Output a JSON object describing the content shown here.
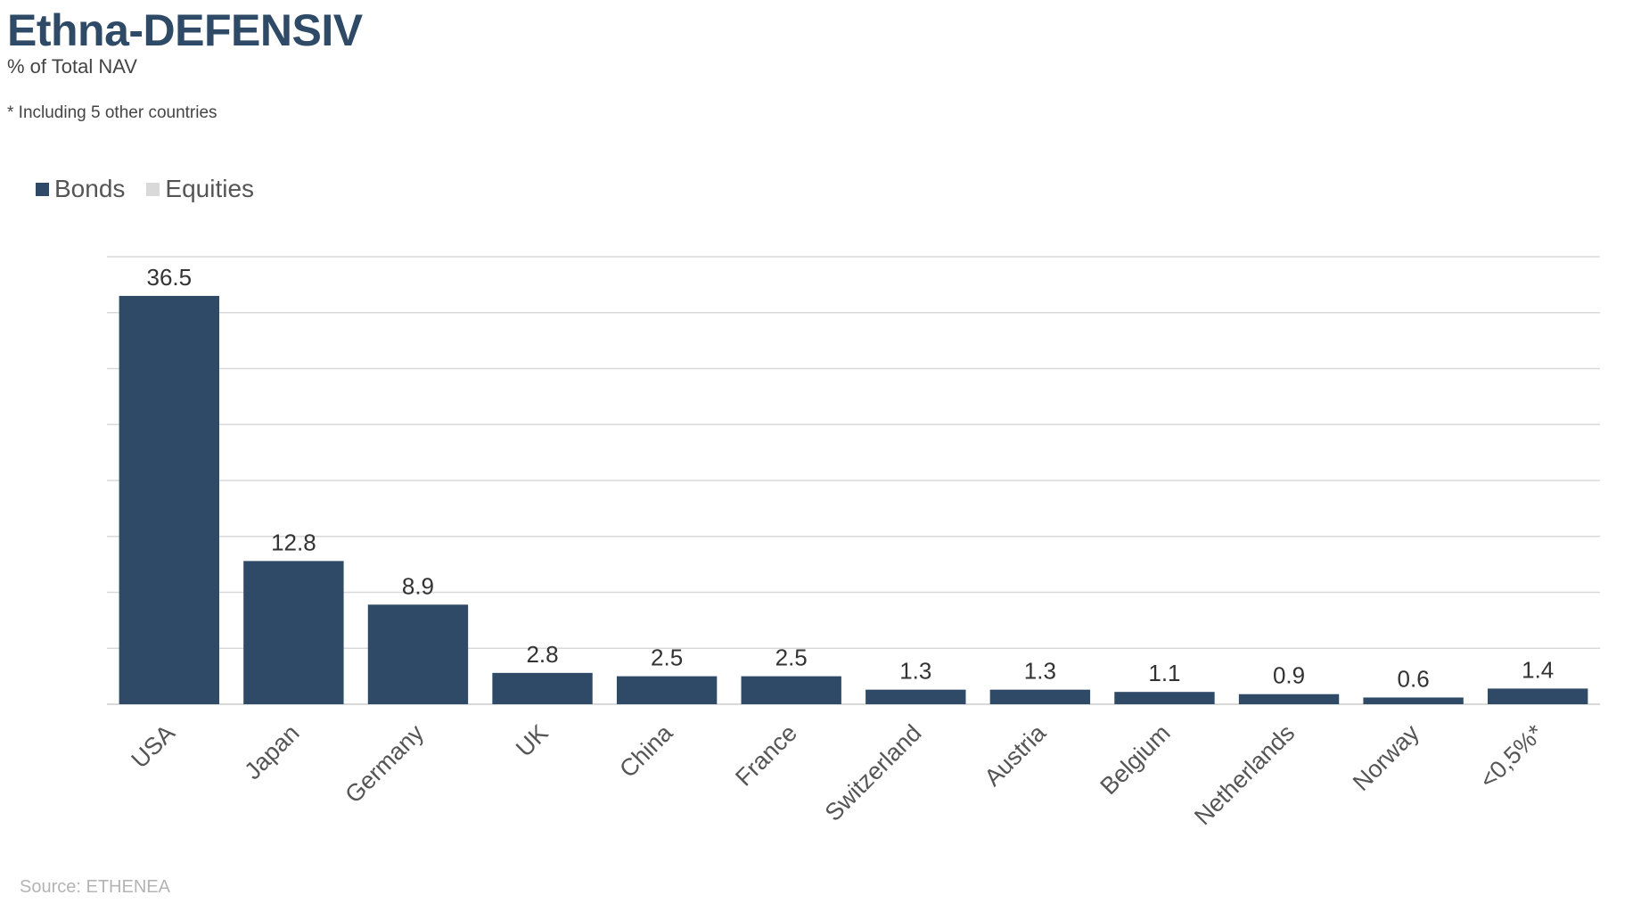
{
  "header": {
    "title": "Ethna-DEFENSIV",
    "subtitle": "% of Total NAV",
    "footnote": "* Including 5 other countries"
  },
  "legend": {
    "items": [
      {
        "label": "Bonds",
        "color": "#2e4a66"
      },
      {
        "label": "Equities",
        "color": "#d9d9d9"
      }
    ]
  },
  "source": "Source: ETHENEA",
  "chart_data": {
    "type": "bar",
    "stacked": true,
    "title": "Ethna-DEFENSIV",
    "subtitle": "% of Total NAV",
    "categories": [
      "USA",
      "Japan",
      "Germany",
      "UK",
      "China",
      "France",
      "Switzerland",
      "Austria",
      "Belgium",
      "Netherlands",
      "Norway",
      "<0,5%*"
    ],
    "series": [
      {
        "name": "Bonds",
        "color": "#2e4a66",
        "values": [
          36.5,
          12.8,
          8.9,
          2.8,
          2.5,
          2.5,
          1.3,
          1.3,
          1.1,
          0.9,
          0.6,
          1.4
        ]
      },
      {
        "name": "Equities",
        "color": "#d9d9d9",
        "values": [
          0,
          0,
          0,
          0,
          0,
          0,
          0,
          0,
          0,
          0,
          0,
          0
        ]
      }
    ],
    "data_labels": [
      "36.5",
      "12.8",
      "8.9",
      "2.8",
      "2.5",
      "2.5",
      "1.3",
      "1.3",
      "1.1",
      "0.9",
      "0.6",
      "1.4"
    ],
    "ylim": [
      0,
      40
    ],
    "grid": true,
    "legend_position": "top-left",
    "xlabel": "",
    "ylabel": ""
  }
}
